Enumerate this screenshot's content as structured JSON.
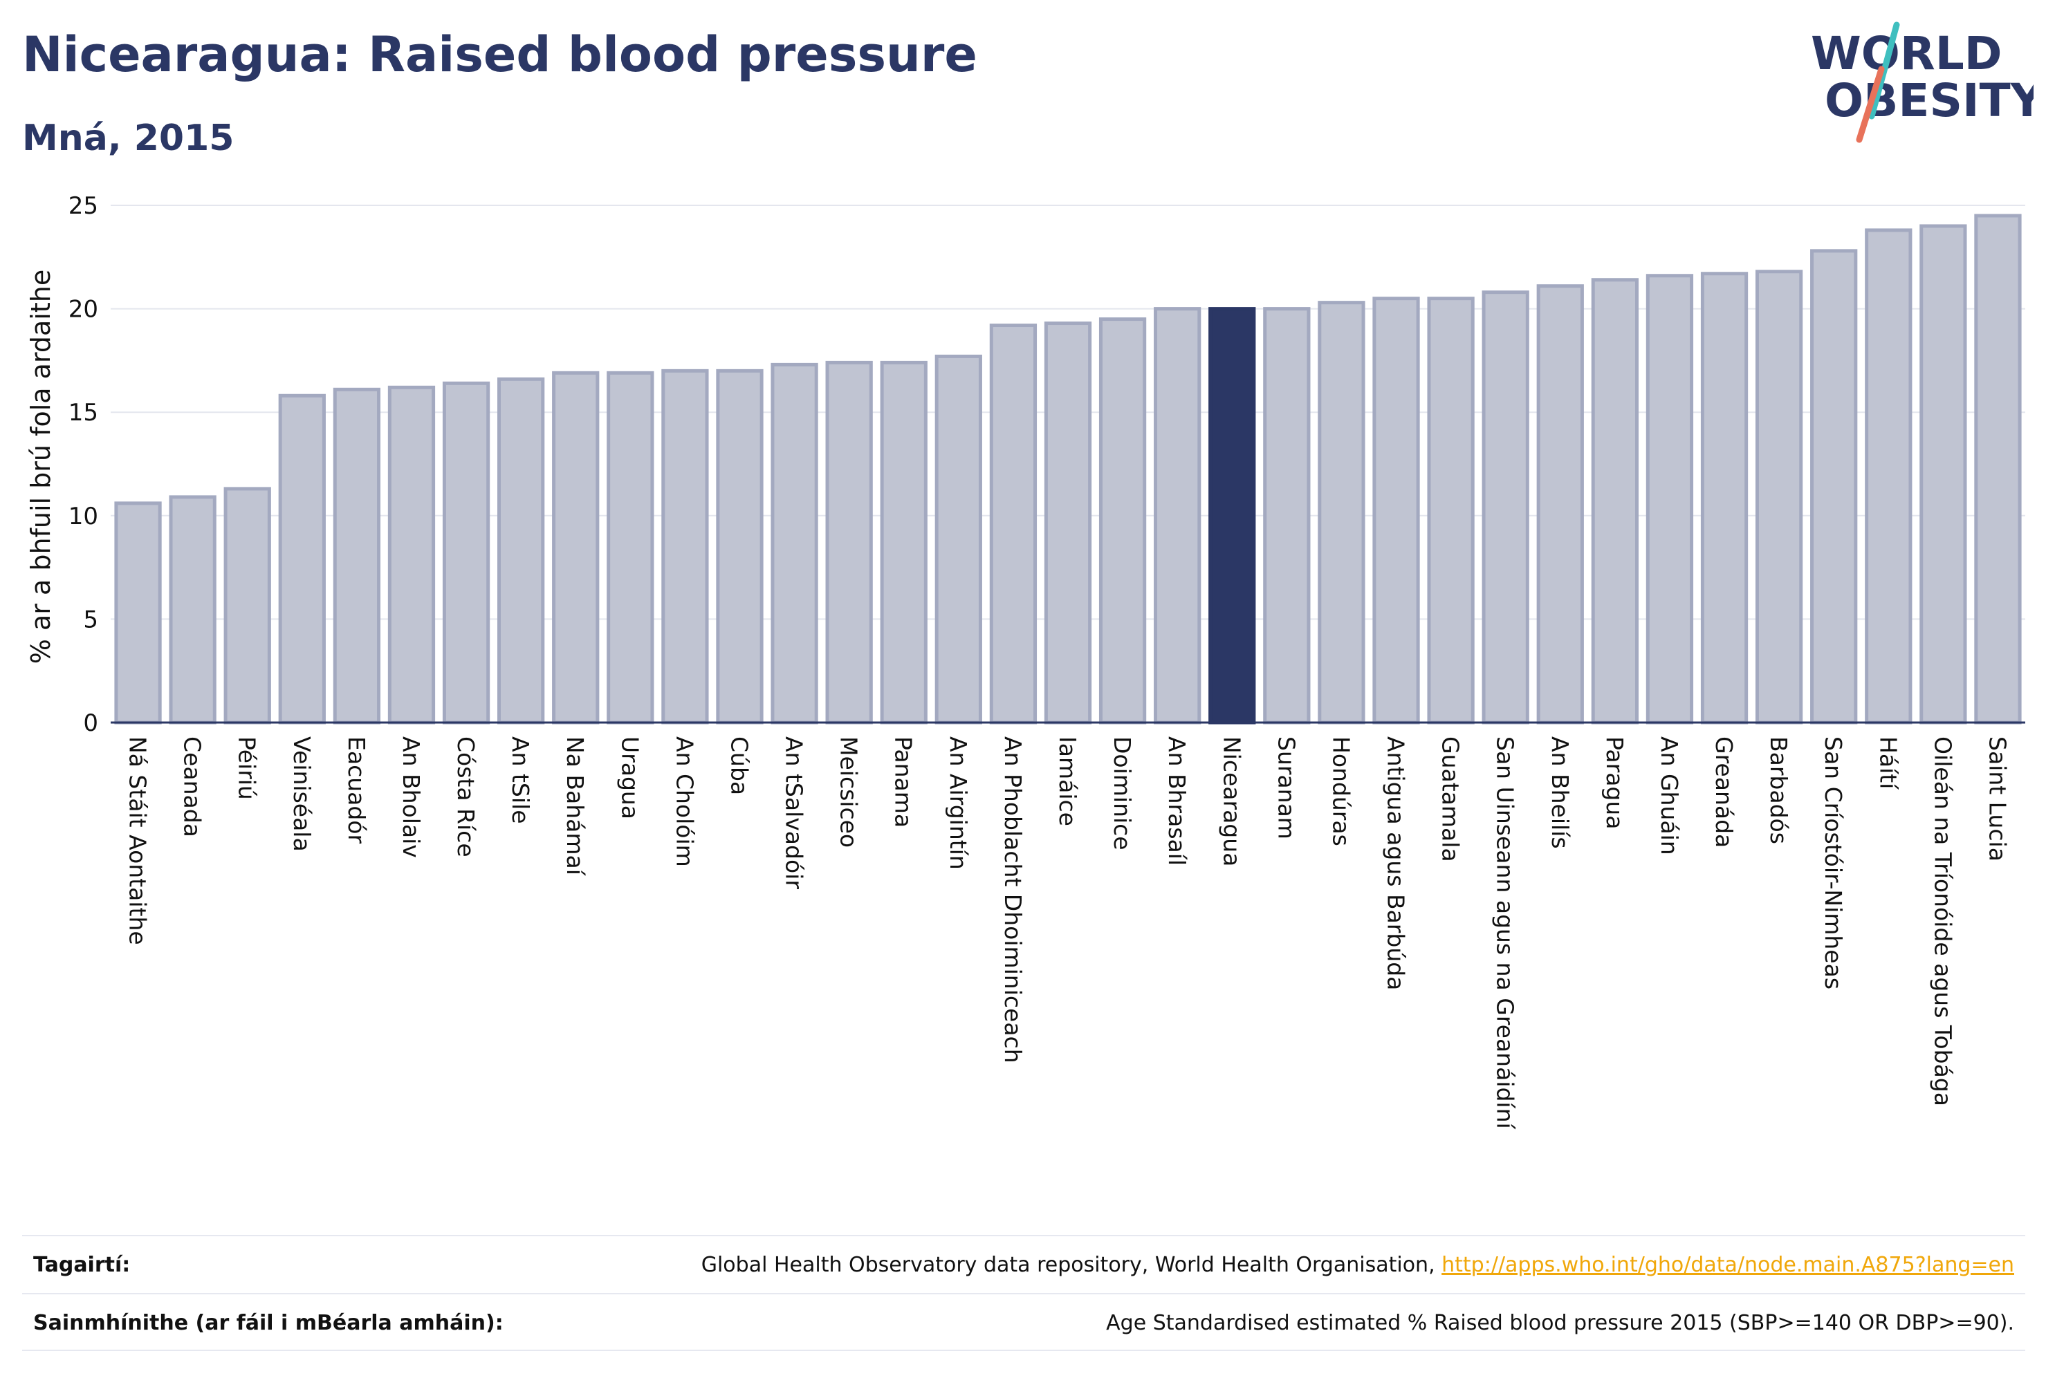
{
  "header": {
    "title": "Nicearagua: Raised blood pressure",
    "subtitle": "Mná, 2015"
  },
  "logo": {
    "line1": "WORLD",
    "line2": "OBESITY"
  },
  "colors": {
    "bar": "#c0c4d2",
    "bar_edge": "#a3a9c0",
    "highlight": "#2b3765",
    "title": "#2b3765",
    "link": "#f0a70a"
  },
  "chart_data": {
    "type": "bar",
    "ylabel": "% ar a bhfuil brú fola ardaithe",
    "ylim": [
      0,
      25
    ],
    "yticks": [
      0,
      5,
      10,
      15,
      20,
      25
    ],
    "grid": true,
    "highlight": "Nicearagua",
    "categories": [
      "Ná Stáit Aontaithe",
      "Ceanada",
      "Péiriú",
      "Veiniséala",
      "Eacuadór",
      "An Bholaiv",
      "Cósta Ríce",
      "An tSile",
      "Na Bahámaí",
      "Uragua",
      "An Cholóim",
      "Cúba",
      "An tSalvadóir",
      "Meicsiceo",
      "Panama",
      "An Airgintín",
      "An Phoblacht Dhoiminiceach",
      "Iamáice",
      "Doiminice",
      "An Bhrasaíl",
      "Nicearagua",
      "Suranam",
      "Hondúras",
      "Antigua agus Barbúda",
      "Guatamala",
      "San Uinseann agus na Greanáidíní",
      "An Bheilís",
      "Paragua",
      "An Ghuáin",
      "Greanáda",
      "Barbadós",
      "San Críostóir-Nimheas",
      "Háítí",
      "Oileán na Tríonóide agus Tobága",
      "Saint Lucia"
    ],
    "values": [
      10.6,
      10.9,
      11.3,
      15.8,
      16.1,
      16.2,
      16.4,
      16.6,
      16.9,
      16.9,
      17.0,
      17.0,
      17.3,
      17.4,
      17.4,
      17.7,
      19.2,
      19.3,
      19.5,
      20.0,
      20.0,
      20.0,
      20.3,
      20.5,
      20.5,
      20.8,
      21.1,
      21.4,
      21.6,
      21.7,
      21.8,
      22.8,
      23.8,
      24.0,
      24.5
    ]
  },
  "references": {
    "source_label": "Tagairtí:",
    "source_text": "Global Health Observatory data repository, World Health Organisation, ",
    "source_link": "http://apps.who.int/gho/data/node.main.A875?lang=en",
    "definition_label": "Sainmhínithe (ar fáil i mBéarla amháin):",
    "definition_text": "Age Standardised estimated % Raised blood pressure 2015 (SBP>=140 OR DBP>=90)."
  }
}
